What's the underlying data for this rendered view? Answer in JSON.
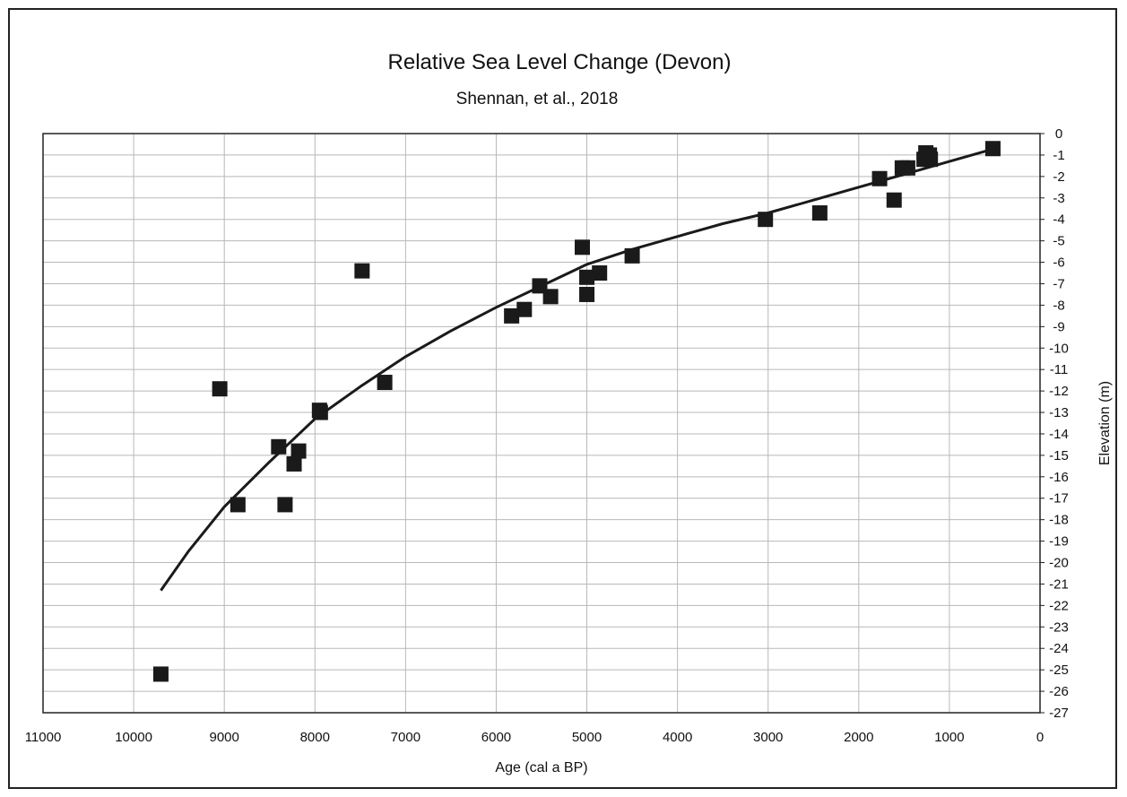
{
  "chart_data": {
    "type": "scatter",
    "title": "Relative Sea Level Change (Devon)",
    "subtitle": "Shennan, et al., 2018",
    "xlabel": "Age (cal a BP)",
    "ylabel": "Elevation (m)",
    "xlim": [
      11000,
      0
    ],
    "ylim": [
      -27,
      0
    ],
    "x_ticks": [
      11000,
      10000,
      9000,
      8000,
      7000,
      6000,
      5000,
      4000,
      3000,
      2000,
      1000,
      0
    ],
    "y_ticks": [
      0,
      -1,
      -2,
      -3,
      -4,
      -5,
      -6,
      -7,
      -8,
      -9,
      -10,
      -11,
      -12,
      -13,
      -14,
      -15,
      -16,
      -17,
      -18,
      -19,
      -20,
      -21,
      -22,
      -23,
      -24,
      -25,
      -26,
      -27
    ],
    "grid": true,
    "y_axis_position": "right",
    "marker_color": "#1a1a1a",
    "line_color": "#1a1a1a",
    "series": [
      {
        "marker": "square",
        "points": [
          {
            "x": 9700,
            "y": -25.2
          },
          {
            "x": 9050,
            "y": -11.9
          },
          {
            "x": 8850,
            "y": -17.3
          },
          {
            "x": 8400,
            "y": -14.6
          },
          {
            "x": 8330,
            "y": -17.3
          },
          {
            "x": 8230,
            "y": -15.4
          },
          {
            "x": 8180,
            "y": -14.8
          },
          {
            "x": 7950,
            "y": -12.9
          },
          {
            "x": 7940,
            "y": -13.0
          },
          {
            "x": 7480,
            "y": -6.4
          },
          {
            "x": 7230,
            "y": -11.6
          },
          {
            "x": 5830,
            "y": -8.5
          },
          {
            "x": 5690,
            "y": -8.2
          },
          {
            "x": 5520,
            "y": -7.1
          },
          {
            "x": 5400,
            "y": -7.6
          },
          {
            "x": 5050,
            "y": -5.3
          },
          {
            "x": 5000,
            "y": -6.7
          },
          {
            "x": 5000,
            "y": -7.5
          },
          {
            "x": 4860,
            "y": -6.5
          },
          {
            "x": 4500,
            "y": -5.7
          },
          {
            "x": 3030,
            "y": -4.0
          },
          {
            "x": 2430,
            "y": -3.7
          },
          {
            "x": 1770,
            "y": -2.1
          },
          {
            "x": 1610,
            "y": -3.1
          },
          {
            "x": 1520,
            "y": -1.6
          },
          {
            "x": 1460,
            "y": -1.6
          },
          {
            "x": 1280,
            "y": -1.2
          },
          {
            "x": 1260,
            "y": -0.9
          },
          {
            "x": 1220,
            "y": -1.0
          },
          {
            "x": 1210,
            "y": -1.2
          },
          {
            "x": 520,
            "y": -0.7
          }
        ]
      },
      {
        "marker": "none",
        "style": "trendline",
        "points": [
          {
            "x": 9700,
            "y": -21.3
          },
          {
            "x": 9400,
            "y": -19.5
          },
          {
            "x": 9000,
            "y": -17.4
          },
          {
            "x": 8500,
            "y": -15.3
          },
          {
            "x": 8000,
            "y": -13.3
          },
          {
            "x": 7500,
            "y": -11.8
          },
          {
            "x": 7000,
            "y": -10.4
          },
          {
            "x": 6500,
            "y": -9.2
          },
          {
            "x": 6000,
            "y": -8.1
          },
          {
            "x": 5500,
            "y": -7.1
          },
          {
            "x": 5000,
            "y": -6.1
          },
          {
            "x": 4500,
            "y": -5.4
          },
          {
            "x": 4000,
            "y": -4.8
          },
          {
            "x": 3500,
            "y": -4.2
          },
          {
            "x": 3000,
            "y": -3.7
          },
          {
            "x": 2500,
            "y": -3.1
          },
          {
            "x": 2000,
            "y": -2.5
          },
          {
            "x": 1500,
            "y": -1.9
          },
          {
            "x": 1000,
            "y": -1.3
          },
          {
            "x": 500,
            "y": -0.7
          }
        ]
      }
    ]
  }
}
